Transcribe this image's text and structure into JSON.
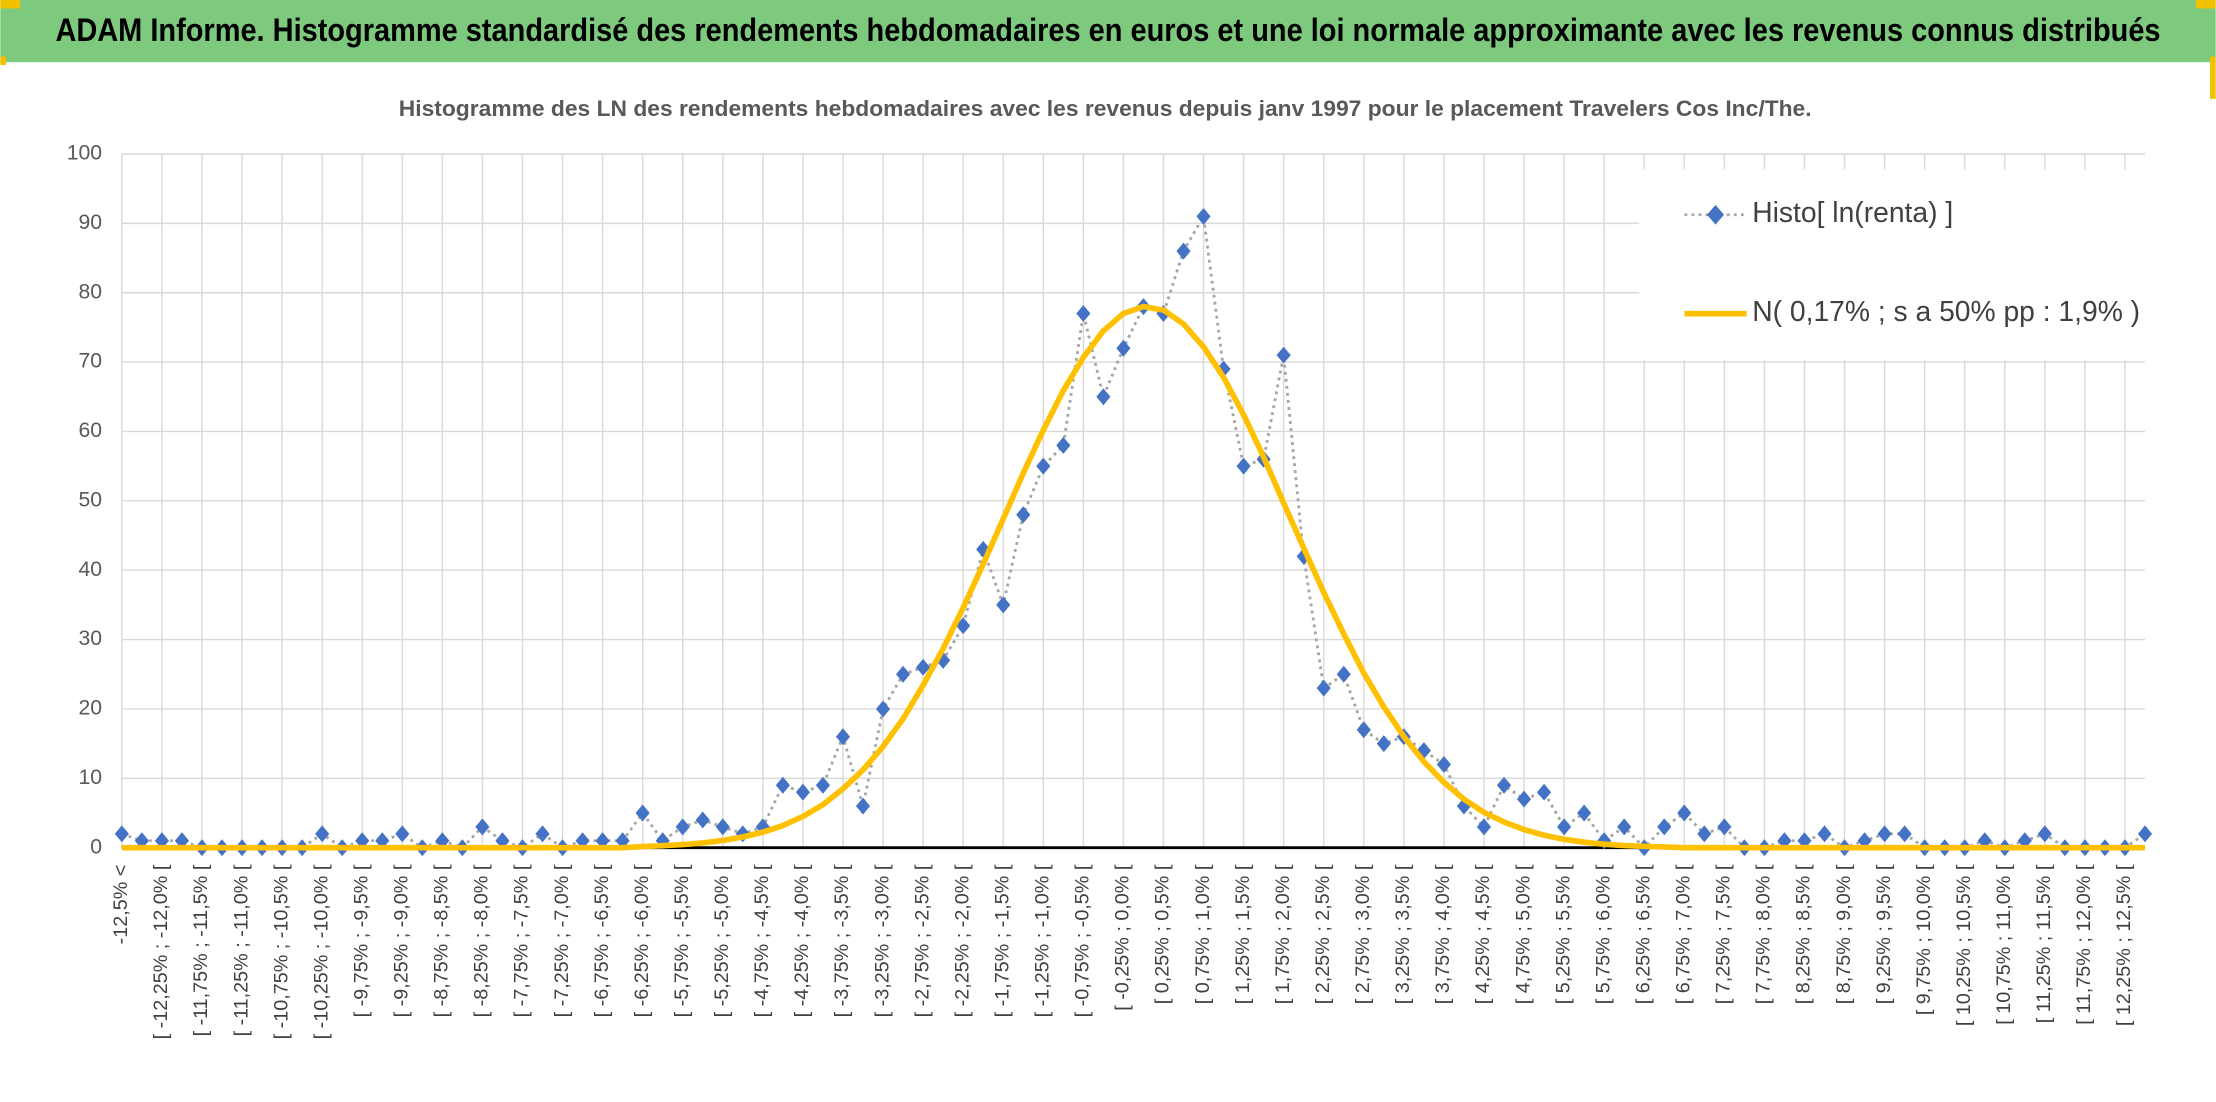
{
  "header": {
    "title": "ADAM Informe. Histogramme standardisé des rendements hebdomadaires en euros et une loi normale approximante avec les revenus connus distribués"
  },
  "chart_data": {
    "type": "line",
    "title": "Histogramme des LN des rendements hebdomadaires avec les revenus depuis janv 1997 pour le placement Travelers Cos Inc/The.",
    "categories": [
      "-12,5% <",
      null,
      "[ -12,25% ; -12,0% [",
      null,
      "[ -11,75% ; -11,5% [",
      null,
      "[ -11,25% ; -11,0% [",
      null,
      "[ -10,75% ; -10,5% [",
      null,
      "[ -10,25% ; -10,0% [",
      null,
      "[ -9,75% ; -9,5% [",
      null,
      "[ -9,25% ; -9,0% [",
      null,
      "[ -8,75% ; -8,5% [",
      null,
      "[ -8,25% ; -8,0% [",
      null,
      "[ -7,75% ; -7,5% [",
      null,
      "[ -7,25% ; -7,0% [",
      null,
      "[ -6,75% ; -6,5% [",
      null,
      "[ -6,25% ; -6,0% [",
      null,
      "[ -5,75% ; -5,5% [",
      null,
      "[ -5,25% ; -5,0% [",
      null,
      "[ -4,75% ; -4,5% [",
      null,
      "[ -4,25% ; -4,0% [",
      null,
      "[ -3,75% ; -3,5% [",
      null,
      "[ -3,25% ; -3,0% [",
      null,
      "[ -2,75% ; -2,5% [",
      null,
      "[ -2,25% ; -2,0% [",
      null,
      "[ -1,75% ; -1,5% [",
      null,
      "[ -1,25% ; -1,0% [",
      null,
      "[ -0,75% ; -0,5% [",
      null,
      "[ -0,25% ; 0,0% [",
      null,
      "[ 0,25% ; 0,5% [",
      null,
      "[ 0,75% ; 1,0% [",
      null,
      "[ 1,25% ; 1,5% [",
      null,
      "[ 1,75% ; 2,0% [",
      null,
      "[ 2,25% ; 2,5% [",
      null,
      "[ 2,75% ; 3,0% [",
      null,
      "[ 3,25% ; 3,5% [",
      null,
      "[ 3,75% ; 4,0% [",
      null,
      "[ 4,25% ; 4,5% [",
      null,
      "[ 4,75% ; 5,0% [",
      null,
      "[ 5,25% ; 5,5% [",
      null,
      "[ 5,75% ; 6,0% [",
      null,
      "[ 6,25% ; 6,5% [",
      null,
      "[ 6,75% ; 7,0% [",
      null,
      "[ 7,25% ; 7,5% [",
      null,
      "[ 7,75% ; 8,0% [",
      null,
      "[ 8,25% ; 8,5% [",
      null,
      "[ 8,75% ; 9,0% [",
      null,
      "[ 9,25% ; 9,5% [",
      null,
      "[ 9,75% ; 10,0% [",
      null,
      "[ 10,25% ; 10,5% [",
      null,
      "[ 10,75% ; 11,0% [",
      null,
      "[ 11,25% ; 11,5% [",
      null,
      "[ 11,75% ; 12,0% [",
      null,
      "[ 12,25% ; 12,5% [",
      null
    ],
    "series": [
      {
        "name": "Histo[ ln(renta) ]",
        "color": "#4472c4",
        "line_color": "#a5a5a5",
        "marker": "diamond",
        "line_style": "dotted",
        "values": [
          2,
          1,
          1,
          1,
          0,
          0,
          0,
          0,
          0,
          0,
          2,
          0,
          1,
          1,
          2,
          0,
          1,
          0,
          3,
          1,
          0,
          2,
          0,
          1,
          1,
          1,
          5,
          1,
          3,
          4,
          3,
          2,
          3,
          9,
          8,
          9,
          16,
          6,
          20,
          25,
          26,
          27,
          32,
          43,
          35,
          48,
          55,
          58,
          77,
          65,
          72,
          78,
          77,
          86,
          91,
          69,
          55,
          56,
          71,
          42,
          23,
          25,
          17,
          15,
          16,
          14,
          12,
          6,
          3,
          9,
          7,
          8,
          3,
          5,
          1,
          3,
          0,
          3,
          5,
          2,
          3,
          0,
          0,
          1,
          1,
          2,
          0,
          1,
          2,
          2,
          0,
          0,
          0,
          1,
          0,
          1,
          2,
          0,
          0,
          0,
          0,
          2
        ]
      },
      {
        "name": "N( 0,17% ; s a 50% pp : 1,9% )",
        "color": "#ffc000",
        "line_style": "solid",
        "values": [
          0,
          0,
          0,
          0,
          0,
          0,
          0,
          0,
          0,
          0,
          0,
          0,
          0,
          0,
          0,
          0,
          0,
          0,
          0,
          0,
          0,
          0,
          0,
          0,
          0,
          0,
          0.17,
          0.28,
          0.44,
          0.7,
          1.03,
          1.55,
          2.25,
          3.2,
          4.5,
          6.2,
          8.5,
          11.2,
          14.6,
          18.6,
          23.4,
          28.7,
          34.6,
          40.9,
          47.4,
          54,
          60.2,
          65.9,
          70.7,
          74.5,
          77,
          78,
          77.5,
          75.5,
          72.2,
          67.8,
          62.4,
          56.3,
          49.7,
          43.2,
          36.8,
          30.8,
          25.2,
          20.3,
          16,
          12.4,
          9.4,
          7,
          5.1,
          3.7,
          2.6,
          1.8,
          1.2,
          0.8,
          0.5,
          0.3,
          0.2,
          0.1,
          0,
          0,
          0,
          0,
          0,
          0,
          0,
          0,
          0,
          0,
          0,
          0,
          0,
          0,
          0,
          0,
          0,
          0,
          0,
          0,
          0,
          0,
          0,
          0
        ]
      }
    ],
    "ylim": [
      0,
      100
    ],
    "yticks": [
      0,
      10,
      20,
      30,
      40,
      50,
      60,
      70,
      80,
      90,
      100
    ],
    "grid": true,
    "legend": "top-right"
  }
}
